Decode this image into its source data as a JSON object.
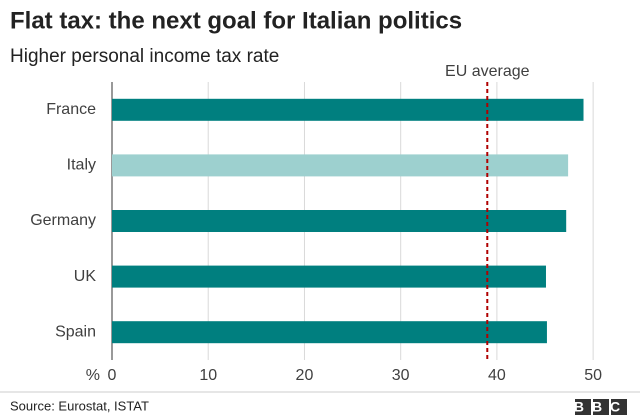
{
  "chart_data": {
    "type": "bar",
    "orientation": "horizontal",
    "title": "Flat tax: the next goal for Italian politics",
    "subtitle": "Higher personal income tax rate",
    "categories": [
      "France",
      "Italy",
      "Germany",
      "UK",
      "Spain"
    ],
    "values": [
      49,
      47.4,
      47.2,
      45.1,
      45.2
    ],
    "colors": [
      "#007f7f",
      "#9dd0cf",
      "#007f7f",
      "#007f7f",
      "#007f7f"
    ],
    "xlim": [
      0,
      53
    ],
    "xticks": [
      0,
      10,
      20,
      30,
      40,
      50
    ],
    "x_unit": "%",
    "grid": true,
    "reference_lines": [
      {
        "value": 39,
        "label": "EU average",
        "color": "#b00000"
      }
    ],
    "source": "Source: Eurostat, ISTAT",
    "branding": "BBC"
  }
}
